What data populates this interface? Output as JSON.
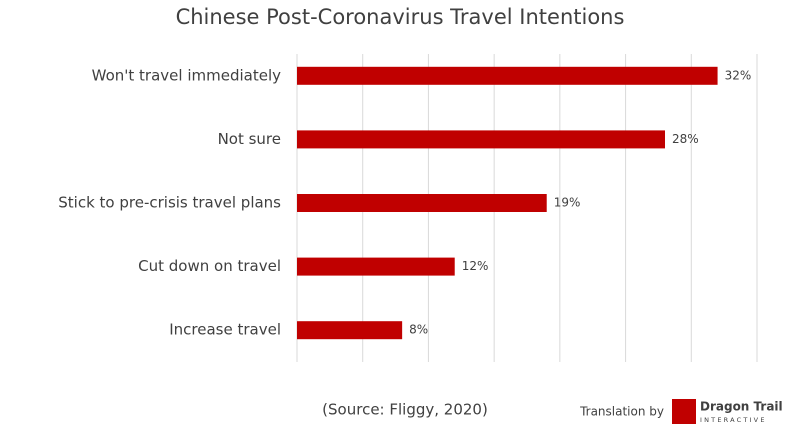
{
  "chart_data": {
    "type": "bar",
    "orientation": "horizontal",
    "title": "Chinese Post-Coronavirus Travel Intentions",
    "categories": [
      "Won't travel immediately",
      "Not sure",
      "Stick to pre-crisis travel plans",
      "Cut down on travel",
      "Increase travel"
    ],
    "values": [
      32,
      28,
      19,
      12,
      8
    ],
    "value_labels": [
      "32%",
      "28%",
      "19%",
      "12%",
      "8%"
    ],
    "color": "#c00000",
    "xlim": [
      0,
      35
    ],
    "xticks": [
      0,
      5,
      10,
      15,
      20,
      25,
      30,
      35
    ],
    "grid": true,
    "source": "(Source: Fliggy, 2020)",
    "credit": {
      "prefix": "Translation by",
      "brand": "Dragon Trail",
      "brand_sub": "INTERACTIVE"
    }
  }
}
